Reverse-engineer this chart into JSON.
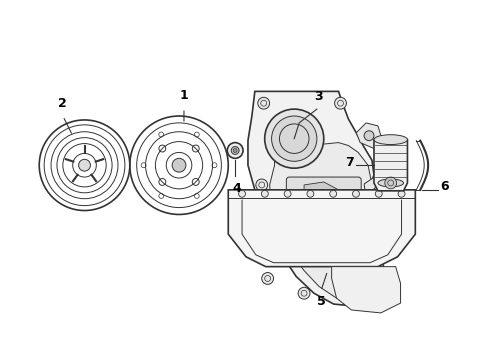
{
  "bg_color": "#ffffff",
  "line_color": "#333333",
  "label_color": "#000000",
  "fig_width": 4.9,
  "fig_height": 3.6,
  "dpi": 100
}
